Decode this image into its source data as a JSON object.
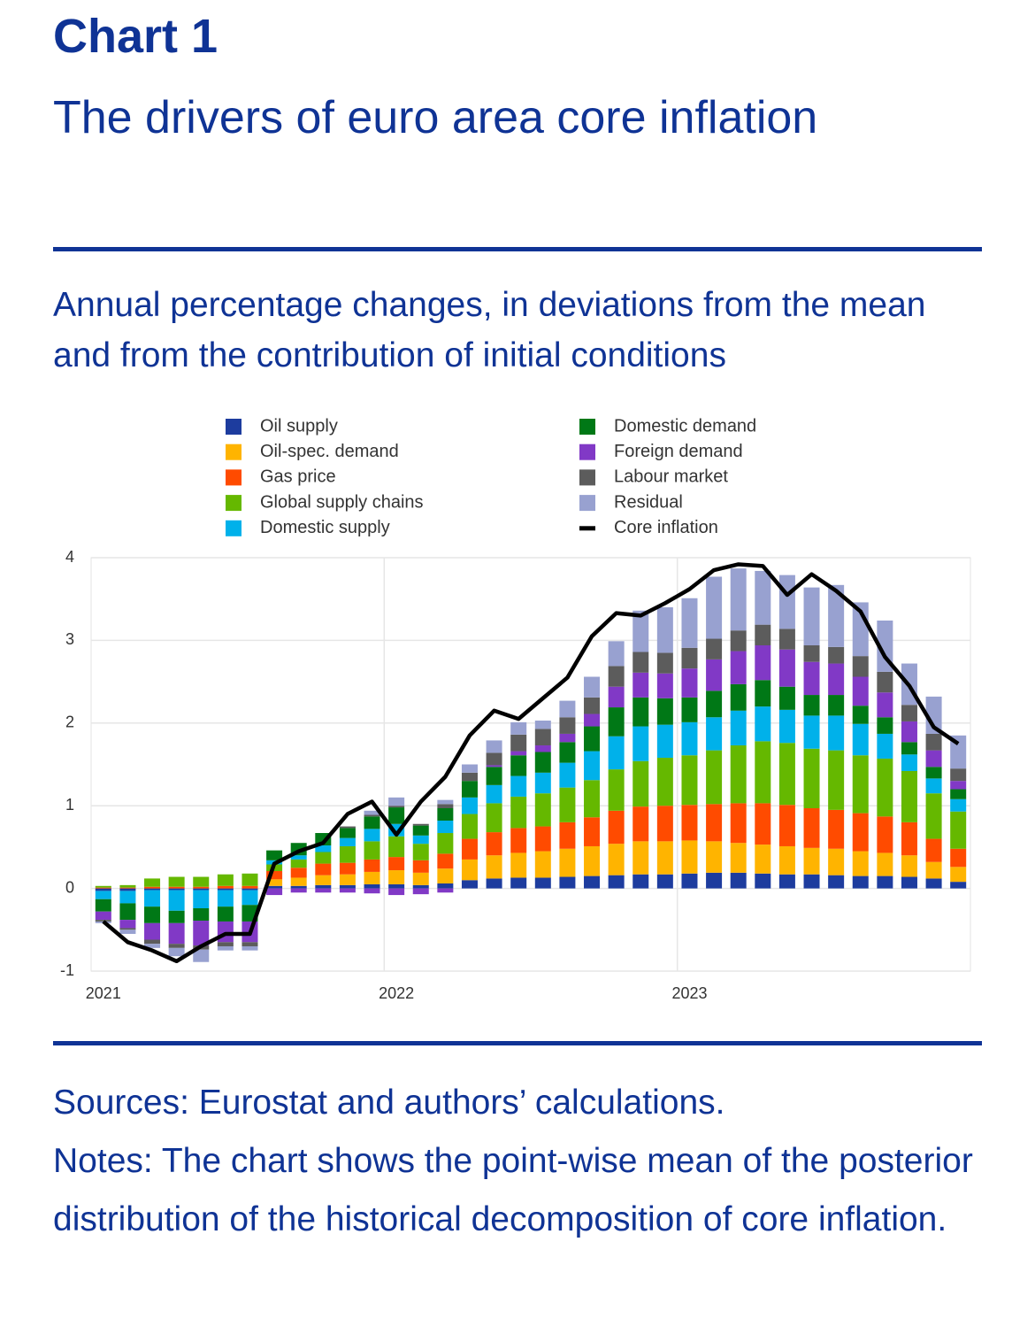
{
  "header": {
    "kicker": "Chart 1",
    "title": "The drivers of euro area core inflation",
    "subtitle": "Annual percentage changes, in deviations from the mean and from the contribution of initial conditions"
  },
  "chart_data": {
    "type": "stacked-bar",
    "categories": [
      "2021",
      null,
      null,
      null,
      null,
      null,
      null,
      null,
      null,
      null,
      null,
      null,
      "2022",
      null,
      null,
      null,
      null,
      null,
      null,
      null,
      null,
      null,
      null,
      null,
      "2023",
      null,
      null,
      null,
      null,
      null,
      null,
      null,
      null,
      null,
      null,
      null
    ],
    "ylim": [
      -1,
      4
    ],
    "yticks": [
      -1,
      0,
      1,
      2,
      3,
      4
    ],
    "grid": true,
    "series": [
      {
        "name": "Oil supply",
        "color": "#1d3c9e",
        "values": [
          -0.03,
          -0.03,
          -0.02,
          -0.02,
          -0.02,
          -0.02,
          -0.02,
          0.03,
          0.03,
          0.04,
          0.04,
          0.05,
          0.05,
          0.04,
          0.06,
          0.1,
          0.12,
          0.13,
          0.13,
          0.14,
          0.15,
          0.16,
          0.17,
          0.17,
          0.18,
          0.19,
          0.19,
          0.18,
          0.17,
          0.17,
          0.16,
          0.15,
          0.15,
          0.14,
          0.12,
          0.08
        ]
      },
      {
        "name": "Oil-spec. demand",
        "color": "#ffb400",
        "values": [
          0,
          0,
          0,
          0,
          0,
          0,
          0,
          0.08,
          0.1,
          0.12,
          0.13,
          0.15,
          0.17,
          0.15,
          0.18,
          0.25,
          0.28,
          0.3,
          0.32,
          0.34,
          0.36,
          0.38,
          0.4,
          0.4,
          0.4,
          0.38,
          0.36,
          0.35,
          0.34,
          0.32,
          0.32,
          0.3,
          0.28,
          0.26,
          0.2,
          0.18
        ]
      },
      {
        "name": "Gas price",
        "color": "#ff4b00",
        "values": [
          0.01,
          0.01,
          0.02,
          0.02,
          0.02,
          0.03,
          0.03,
          0.1,
          0.12,
          0.14,
          0.14,
          0.15,
          0.16,
          0.15,
          0.18,
          0.25,
          0.28,
          0.3,
          0.3,
          0.32,
          0.35,
          0.4,
          0.42,
          0.43,
          0.43,
          0.45,
          0.48,
          0.5,
          0.5,
          0.48,
          0.47,
          0.46,
          0.44,
          0.4,
          0.28,
          0.22
        ]
      },
      {
        "name": "Global supply chains",
        "color": "#65b800",
        "values": [
          0.02,
          0.03,
          0.1,
          0.12,
          0.12,
          0.14,
          0.15,
          0.08,
          0.1,
          0.14,
          0.2,
          0.22,
          0.25,
          0.2,
          0.25,
          0.3,
          0.35,
          0.38,
          0.4,
          0.42,
          0.45,
          0.5,
          0.55,
          0.58,
          0.6,
          0.65,
          0.7,
          0.75,
          0.75,
          0.72,
          0.72,
          0.7,
          0.7,
          0.62,
          0.55,
          0.45
        ]
      },
      {
        "name": "Domestic supply",
        "color": "#00b1ea",
        "values": [
          -0.1,
          -0.15,
          -0.2,
          -0.25,
          -0.22,
          -0.2,
          -0.18,
          0.05,
          0.05,
          0.08,
          0.1,
          0.15,
          0.15,
          0.1,
          0.15,
          0.2,
          0.22,
          0.25,
          0.25,
          0.3,
          0.35,
          0.4,
          0.42,
          0.4,
          0.4,
          0.4,
          0.42,
          0.42,
          0.4,
          0.4,
          0.42,
          0.38,
          0.3,
          0.2,
          0.18,
          0.15
        ]
      },
      {
        "name": "Domestic demand",
        "color": "#007816",
        "values": [
          -0.15,
          -0.2,
          -0.2,
          -0.15,
          -0.15,
          -0.18,
          -0.2,
          0.12,
          0.15,
          0.15,
          0.12,
          0.15,
          0.2,
          0.12,
          0.15,
          0.2,
          0.22,
          0.25,
          0.25,
          0.25,
          0.3,
          0.35,
          0.35,
          0.32,
          0.3,
          0.32,
          0.32,
          0.32,
          0.28,
          0.25,
          0.25,
          0.22,
          0.2,
          0.15,
          0.14,
          0.12
        ]
      },
      {
        "name": "Foreign demand",
        "color": "#8139c6",
        "values": [
          -0.1,
          -0.1,
          -0.2,
          -0.25,
          -0.3,
          -0.25,
          -0.25,
          -0.08,
          -0.05,
          -0.05,
          -0.05,
          -0.06,
          -0.08,
          -0.07,
          -0.05,
          0,
          0.02,
          0.05,
          0.08,
          0.1,
          0.15,
          0.25,
          0.3,
          0.3,
          0.35,
          0.38,
          0.4,
          0.42,
          0.45,
          0.4,
          0.38,
          0.35,
          0.3,
          0.25,
          0.2,
          0.1
        ]
      },
      {
        "name": "Labour market",
        "color": "#5c5c5c",
        "values": [
          -0.02,
          -0.02,
          -0.05,
          -0.05,
          -0.05,
          -0.05,
          -0.05,
          0,
          0,
          0,
          0.02,
          0.02,
          0.02,
          0.02,
          0.05,
          0.1,
          0.15,
          0.2,
          0.2,
          0.2,
          0.2,
          0.25,
          0.25,
          0.25,
          0.25,
          0.25,
          0.25,
          0.25,
          0.25,
          0.2,
          0.2,
          0.25,
          0.25,
          0.2,
          0.2,
          0.15
        ]
      },
      {
        "name": "Residual",
        "color": "#98a1d0",
        "values": [
          -0.02,
          -0.05,
          -0.05,
          -0.1,
          -0.15,
          -0.05,
          -0.05,
          0,
          0,
          0,
          0,
          0.05,
          0.1,
          0,
          0.05,
          0.1,
          0.15,
          0.15,
          0.1,
          0.2,
          0.25,
          0.3,
          0.5,
          0.55,
          0.6,
          0.75,
          0.75,
          0.65,
          0.65,
          0.7,
          0.75,
          0.65,
          0.62,
          0.5,
          0.45,
          0.4
        ]
      }
    ],
    "line": {
      "name": "Core inflation",
      "color": "#000000",
      "values": [
        -0.4,
        -0.65,
        -0.75,
        -0.88,
        -0.7,
        -0.55,
        -0.55,
        0.3,
        0.45,
        0.55,
        0.9,
        1.05,
        0.65,
        1.05,
        1.35,
        1.85,
        2.15,
        2.05,
        2.3,
        2.55,
        3.05,
        3.33,
        3.3,
        3.45,
        3.62,
        3.85,
        3.92,
        3.9,
        3.55,
        3.8,
        3.6,
        3.35,
        2.8,
        2.45,
        1.95,
        1.75
      ]
    }
  },
  "footer": {
    "sources": "Sources: Eurostat and authors’ calculations.",
    "notes": "Notes: The chart shows the point-wise mean of the posterior distribution of the historical decomposition of core inflation."
  }
}
